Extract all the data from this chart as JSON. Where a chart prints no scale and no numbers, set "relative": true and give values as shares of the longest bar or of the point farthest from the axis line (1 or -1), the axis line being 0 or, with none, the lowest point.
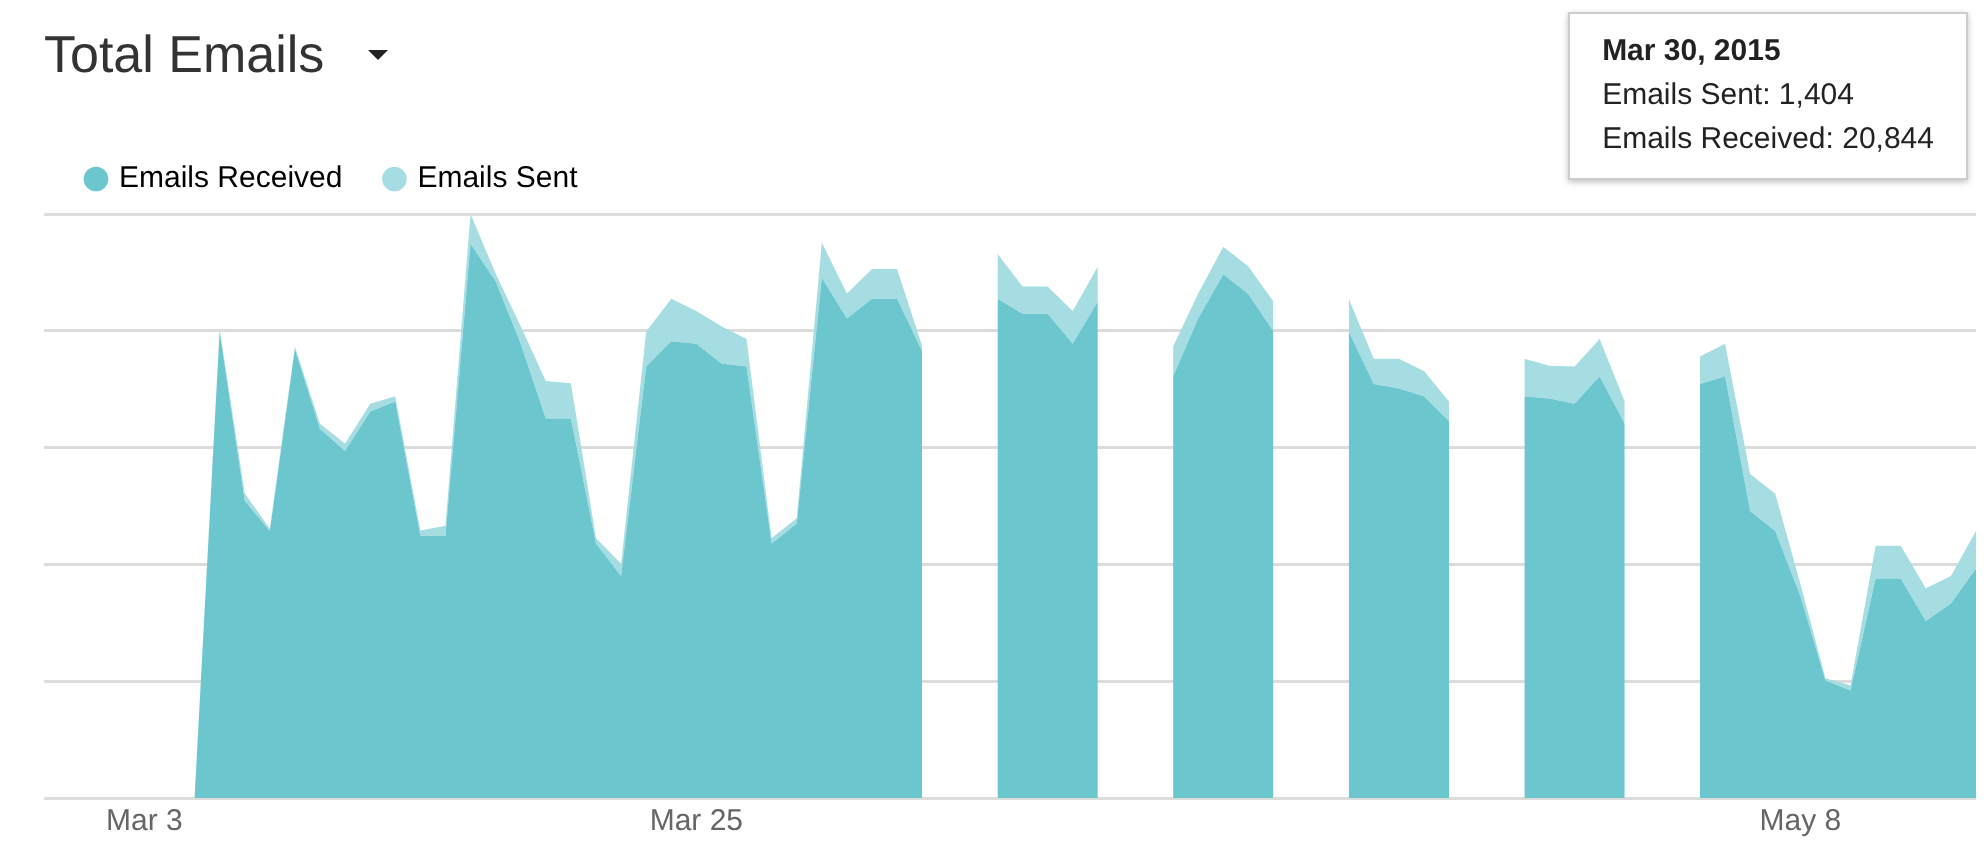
{
  "chart_data": {
    "type": "area",
    "title": "Total Emails",
    "stacked": true,
    "relative": true,
    "legend": "top left",
    "grid": "y",
    "tick_labels": "x",
    "marker": "none",
    "x": [
      "2015-03-03",
      "2015-03-04",
      "2015-03-05",
      "2015-03-06",
      "2015-03-07",
      "2015-03-08",
      "2015-03-09",
      "2015-03-10",
      "2015-03-11",
      "2015-03-12",
      "2015-03-13",
      "2015-03-14",
      "2015-03-15",
      "2015-03-16",
      "2015-03-17",
      "2015-03-18",
      "2015-03-19",
      "2015-03-20",
      "2015-03-21",
      "2015-03-22",
      "2015-03-23",
      "2015-03-24",
      "2015-03-25",
      "2015-03-26",
      "2015-03-27",
      "2015-03-28",
      "2015-03-29",
      "2015-03-30",
      "2015-03-31",
      "2015-04-01",
      "2015-04-02",
      "2015-04-03",
      "2015-04-04",
      "2015-04-05",
      "2015-04-06",
      "2015-04-07",
      "2015-04-08",
      "2015-04-09",
      "2015-04-10",
      "2015-04-11",
      "2015-04-12",
      "2015-04-13",
      "2015-04-14",
      "2015-04-15",
      "2015-04-16",
      "2015-04-17",
      "2015-04-18",
      "2015-04-19",
      "2015-04-20",
      "2015-04-21",
      "2015-04-22",
      "2015-04-23",
      "2015-04-24",
      "2015-04-25",
      "2015-04-26",
      "2015-04-27",
      "2015-04-28",
      "2015-04-29",
      "2015-04-30",
      "2015-05-01",
      "2015-05-02",
      "2015-05-03",
      "2015-05-04",
      "2015-05-05",
      "2015-05-06",
      "2015-05-07",
      "2015-05-08",
      "2015-05-09",
      "2015-05-10",
      "2015-05-11",
      "2015-05-12",
      "2015-05-13",
      "2015-05-14",
      "2015-05-15"
    ],
    "series": [
      {
        "name": "Emails Received",
        "color": "#6cc6ce",
        "values": [
          0,
          0,
          0,
          0.799,
          0.509,
          0.457,
          0.769,
          0.632,
          0.594,
          0.662,
          0.679,
          0.449,
          0.449,
          0.949,
          0.885,
          0.778,
          0.65,
          0.65,
          0.436,
          0.38,
          0.739,
          0.782,
          0.778,
          0.744,
          0.739,
          0.436,
          0.47,
          0.891,
          0.821,
          0.855,
          0.855,
          0.765,
          null,
          null,
          0.855,
          0.829,
          0.829,
          0.778,
          0.85,
          null,
          null,
          0.722,
          0.821,
          0.897,
          0.863,
          0.799,
          null,
          null,
          0.799,
          0.709,
          0.701,
          0.688,
          0.645,
          null,
          null,
          0.688,
          0.684,
          0.675,
          0.722,
          0.641,
          null,
          null,
          0.709,
          0.722,
          0.491,
          0.457,
          0.346,
          0.201,
          0.184,
          0.376,
          0.376,
          0.303,
          0.333,
          0.393
        ]
      },
      {
        "name": "Emails Sent",
        "color": "#a6dde3",
        "values": [
          0,
          0,
          0,
          0.004,
          0.013,
          0.004,
          0.004,
          0.009,
          0.013,
          0.013,
          0.009,
          0.009,
          0.017,
          0.051,
          0.013,
          0.03,
          0.064,
          0.06,
          0.009,
          0.021,
          0.06,
          0.073,
          0.056,
          0.064,
          0.047,
          0.009,
          0.009,
          0.06,
          0.043,
          0.051,
          0.051,
          0.009,
          null,
          null,
          0.077,
          0.047,
          0.047,
          0.056,
          0.06,
          null,
          null,
          0.051,
          0.043,
          0.047,
          0.047,
          0.051,
          null,
          null,
          0.056,
          0.043,
          0.051,
          0.043,
          0.034,
          null,
          null,
          0.064,
          0.056,
          0.064,
          0.064,
          0.038,
          null,
          null,
          0.047,
          0.056,
          0.064,
          0.064,
          0.021,
          0.004,
          0.009,
          0.056,
          0.056,
          0.056,
          0.047,
          0.064
        ]
      }
    ],
    "xlim": [
      "2015-02-27",
      "2015-05-15"
    ],
    "xticks": [
      {
        "value": "2015-03-03",
        "label": "Mar 3"
      },
      {
        "value": "2015-03-25",
        "label": "Mar 25"
      },
      {
        "value": "2015-05-08",
        "label": "May 8"
      }
    ],
    "annotations": [
      "Mar 30, 2015",
      "Emails Sent: 1,404",
      "Emails Received: 20,844"
    ]
  }
}
